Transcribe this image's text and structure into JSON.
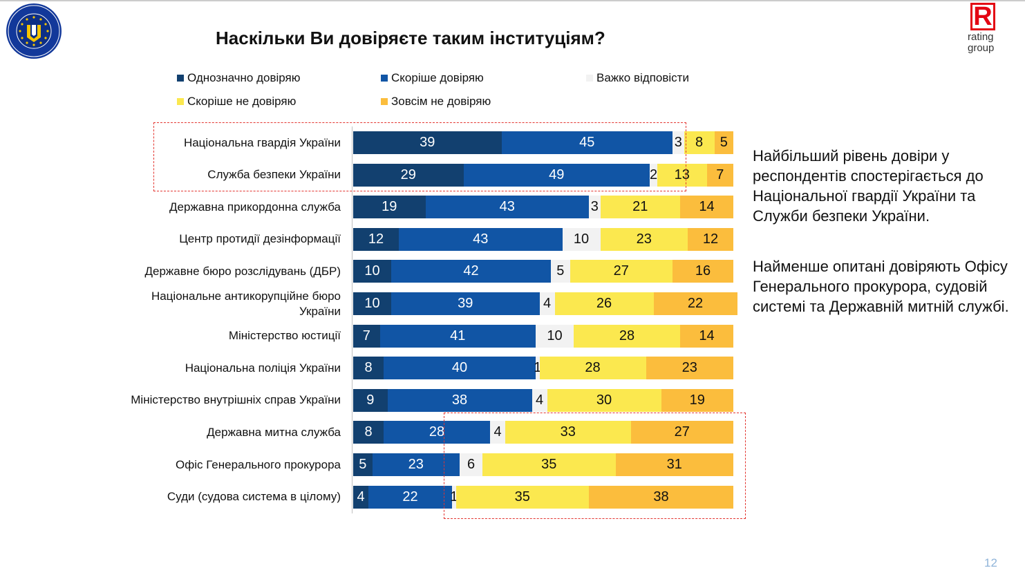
{
  "header": {
    "title": "Наскільки Ви довіряєте таким інституціям?",
    "eu_logo_text": [
      "EUROPEAN UNION",
      "EUAM UKRAINE"
    ],
    "rg_logo_letter": "R",
    "rg_logo_text": [
      "rating",
      "group"
    ]
  },
  "chart_data": {
    "type": "bar",
    "orientation": "horizontal",
    "stacked": true,
    "unit": "%",
    "legend_position": "top",
    "categories": [
      "Національна гвардія України",
      "Служба безпеки України",
      "Державна прикордонна служба",
      "Центр протидії дезінформації",
      "Державне бюро розслідувань (ДБР)",
      "Національне антикорупційне бюро України",
      "Міністерство юстиції",
      "Національна поліція України",
      "Міністерство внутрішніх справ України",
      "Державна митна служба",
      "Офіс Генерального прокурора",
      "Суди (судова система в цілому)"
    ],
    "category_label_lines": [
      [
        "Національна гвардія України"
      ],
      [
        "Служба безпеки України"
      ],
      [
        "Державна прикордонна служба"
      ],
      [
        "Центр протидії дезінформації"
      ],
      [
        "Державне бюро розслідувань (ДБР)"
      ],
      [
        "Національне антикорупційне бюро",
        "України"
      ],
      [
        "Міністерство юстиції"
      ],
      [
        "Національна поліція України"
      ],
      [
        "Міністерство внутрішніх справ України"
      ],
      [
        "Державна митна служба"
      ],
      [
        "Офіс Генерального прокурора"
      ],
      [
        "Суди (судова система в цілому)"
      ]
    ],
    "series": [
      {
        "name": "Однозначно довіряю",
        "color": "#12406f",
        "label_color": "#ffffff",
        "values": [
          39,
          29,
          19,
          12,
          10,
          10,
          7,
          8,
          9,
          8,
          5,
          4
        ]
      },
      {
        "name": "Скоріше довіряю",
        "color": "#1155a5",
        "label_color": "#ffffff",
        "values": [
          45,
          49,
          43,
          43,
          42,
          39,
          41,
          40,
          38,
          28,
          23,
          22
        ]
      },
      {
        "name": "Важко відповісти",
        "color": "#f2f2f2",
        "label_color": "#111111",
        "values": [
          3,
          2,
          3,
          10,
          5,
          4,
          10,
          1,
          4,
          4,
          6,
          1
        ]
      },
      {
        "name": "Скоріше не довіряю",
        "color": "#fbe84f",
        "label_color": "#111111",
        "values": [
          8,
          13,
          21,
          23,
          27,
          26,
          28,
          28,
          30,
          33,
          35,
          35
        ]
      },
      {
        "name": "Зовсім не довіряю",
        "color": "#fbbd3d",
        "label_color": "#111111",
        "values": [
          5,
          7,
          14,
          12,
          16,
          22,
          14,
          23,
          19,
          27,
          31,
          38
        ]
      }
    ],
    "legend_rows": [
      [
        "Однозначно довіряю",
        "Скоріше довіряю",
        "Важко відповісти"
      ],
      [
        "Скоріше не довіряю",
        "Зовсім не довіряю"
      ]
    ],
    "highlight_color": "#e3342f"
  },
  "notes": [
    "Найбільший рівень довіри у респондентів спостерігається до Національної гвардії України та Служби безпеки України.",
    "Найменше опитані довіряють Офісу Генерального прокурора, судовій системі та Державній митній службі."
  ],
  "page_number": "12"
}
